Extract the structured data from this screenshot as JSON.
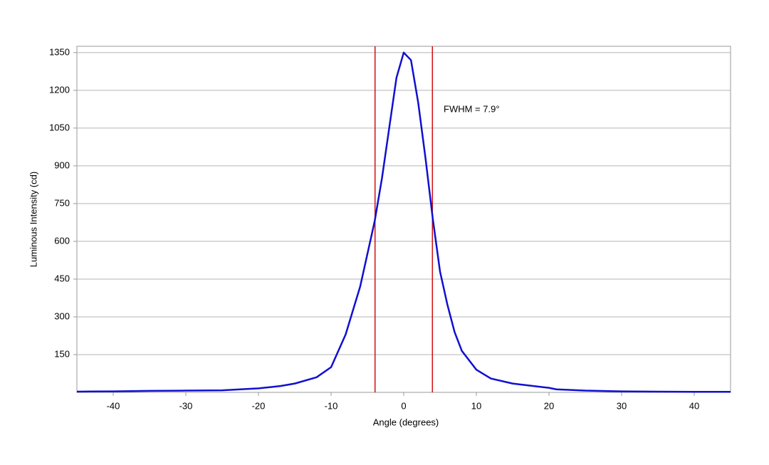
{
  "chart_data": {
    "type": "line",
    "xlabel": "Angle (degrees)",
    "ylabel": "Luminous Intensity (cd)",
    "annotation": "FWHM = 7.9°",
    "x": [
      -45,
      -40,
      -35,
      -30,
      -25,
      -20,
      -17,
      -15,
      -12,
      -10,
      -8,
      -6,
      -4,
      -3,
      -2,
      -1,
      0,
      1,
      2,
      3,
      4,
      5,
      6,
      7,
      8,
      10,
      12,
      15,
      20,
      21,
      25,
      30,
      35,
      40,
      45
    ],
    "series": [
      {
        "color": "#1010d0",
        "values": [
          3,
          4,
          6,
          7,
          8,
          16,
          25,
          35,
          60,
          100,
          230,
          420,
          680,
          850,
          1050,
          1250,
          1350,
          1320,
          1150,
          930,
          690,
          480,
          350,
          240,
          165,
          90,
          55,
          35,
          18,
          12,
          7,
          4,
          3,
          2,
          2
        ]
      }
    ],
    "markers": [
      -3.95,
      3.95
    ],
    "marker_color": "#d01010",
    "xlim": [
      -45,
      45
    ],
    "ylim": [
      0,
      1375
    ],
    "xticks": [
      -40,
      -30,
      -20,
      -10,
      0,
      10,
      20,
      30,
      40
    ],
    "yticks": [
      150,
      300,
      450,
      600,
      750,
      900,
      1050,
      1200,
      1350
    ],
    "grid": true
  }
}
